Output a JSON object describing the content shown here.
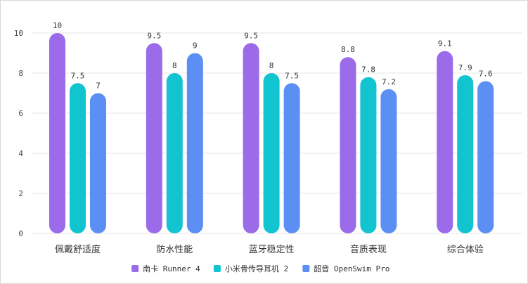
{
  "chart_data": {
    "type": "bar",
    "categories": [
      "佩戴舒适度",
      "防水性能",
      "蓝牙稳定性",
      "音质表现",
      "综合体验"
    ],
    "series": [
      {
        "name": "南卡 Runner 4",
        "color": "#9B6BEA",
        "values": [
          10,
          9.5,
          9.5,
          8.8,
          9.1
        ]
      },
      {
        "name": "小米骨传导耳机 2",
        "color": "#12C4D0",
        "values": [
          7.5,
          8,
          8,
          7.8,
          7.9
        ]
      },
      {
        "name": "韶音 OpenSwim Pro",
        "color": "#5B8FF3",
        "values": [
          7,
          9,
          7.5,
          7.2,
          7.6
        ]
      }
    ],
    "yticks": [
      0,
      2,
      4,
      6,
      8,
      10
    ],
    "ylim": [
      0,
      10
    ],
    "grid": true,
    "legend": "bottom-center",
    "title": "",
    "xlabel": "",
    "ylabel": ""
  }
}
